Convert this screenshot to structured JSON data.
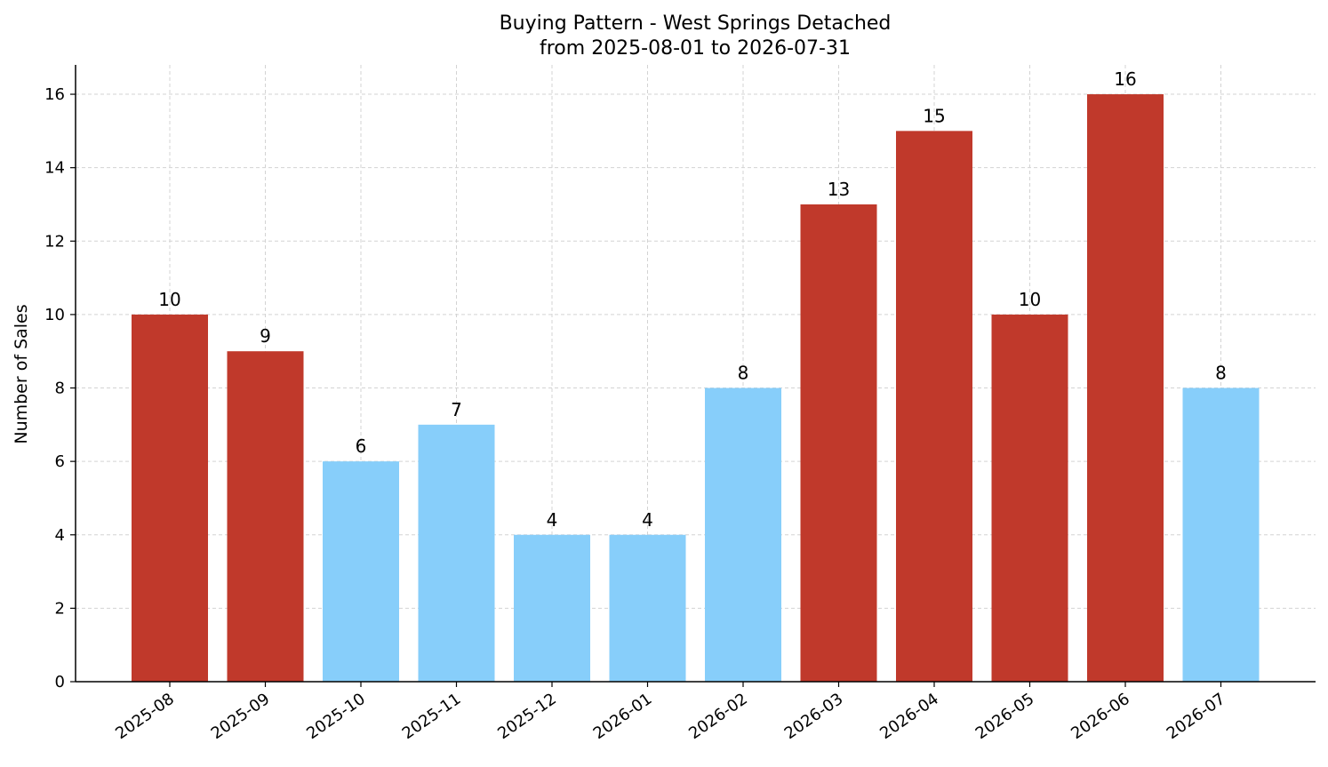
{
  "chart_data": {
    "type": "bar",
    "title": "Buying Pattern - West Springs Detached",
    "subtitle": "from 2025-08-01 to 2026-07-31",
    "xlabel": "",
    "ylabel": "Number of Sales",
    "categories": [
      "2025-08",
      "2025-09",
      "2025-10",
      "2025-11",
      "2025-12",
      "2026-01",
      "2026-02",
      "2026-03",
      "2026-04",
      "2026-05",
      "2026-06",
      "2026-07"
    ],
    "values": [
      10,
      9,
      6,
      7,
      4,
      4,
      8,
      13,
      15,
      10,
      16,
      8
    ],
    "ylim": [
      0,
      16.8
    ],
    "yticks": [
      0,
      2,
      4,
      6,
      8,
      10,
      12,
      14,
      16
    ],
    "grid": true,
    "colors": {
      "high": "#c0392b",
      "low": "#87cefa"
    },
    "bar_colors": [
      "high",
      "high",
      "low",
      "low",
      "low",
      "low",
      "low",
      "high",
      "high",
      "high",
      "high",
      "low"
    ]
  }
}
